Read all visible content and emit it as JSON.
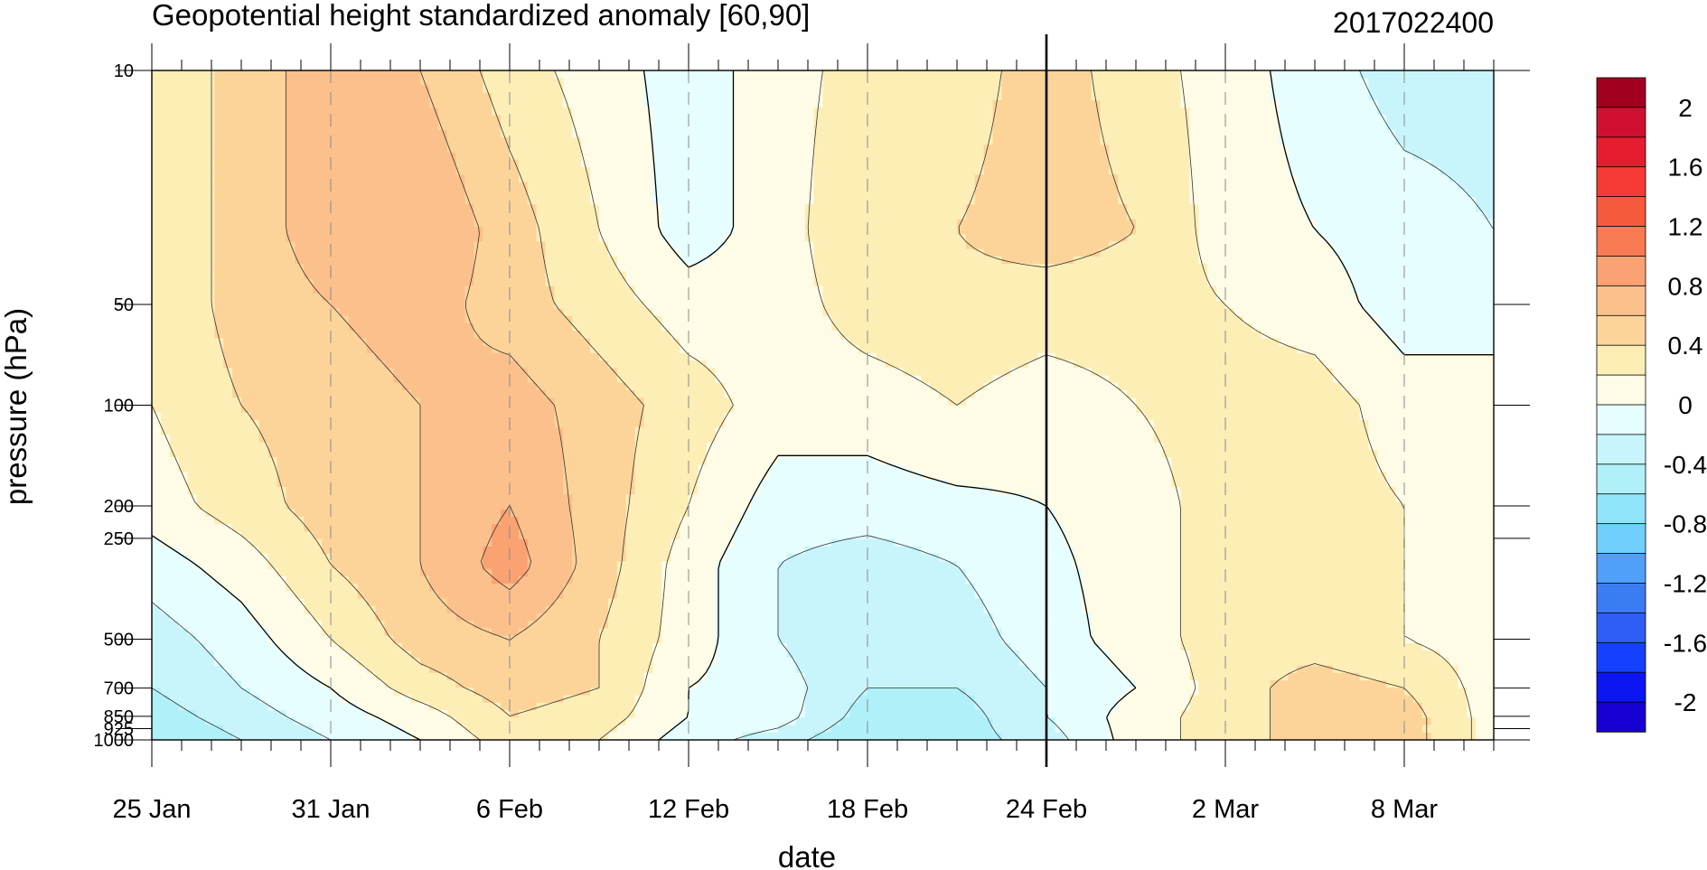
{
  "chart_data": {
    "type": "heatmap",
    "subtype": "filled-contour time-pressure cross-section",
    "title": "Geopotential height standardized anomaly [60,90]",
    "title_right": "2017022400",
    "xlabel": "date",
    "ylabel": "pressure (hPa)",
    "y_scale": "log",
    "y_inverted": true,
    "ylim": [
      1000,
      10
    ],
    "xlim_days": [
      0,
      45
    ],
    "x_ticks": [
      {
        "day": 0,
        "label": "25 Jan"
      },
      {
        "day": 6,
        "label": "31 Jan"
      },
      {
        "day": 12,
        "label": "6 Feb"
      },
      {
        "day": 18,
        "label": "12 Feb"
      },
      {
        "day": 24,
        "label": "18 Feb"
      },
      {
        "day": 30,
        "label": "24 Feb"
      },
      {
        "day": 36,
        "label": "2 Mar"
      },
      {
        "day": 42,
        "label": "8 Mar"
      }
    ],
    "y_ticks": [
      {
        "p": 10,
        "label": "10"
      },
      {
        "p": 50,
        "label": "50"
      },
      {
        "p": 100,
        "label": "100"
      },
      {
        "p": 200,
        "label": "200"
      },
      {
        "p": 250,
        "label": "250"
      },
      {
        "p": 500,
        "label": "500"
      },
      {
        "p": 700,
        "label": "700"
      },
      {
        "p": 850,
        "label": "850"
      },
      {
        "p": 925,
        "label": "925"
      },
      {
        "p": 1000,
        "label": "1000"
      }
    ],
    "vertical_marker_day": 30,
    "colorbar": {
      "levels": [
        -2.2,
        -2.0,
        -1.8,
        -1.6,
        -1.4,
        -1.2,
        -1.0,
        -0.8,
        -0.6,
        -0.4,
        -0.2,
        0.0,
        0.2,
        0.4,
        0.6,
        0.8,
        1.0,
        1.2,
        1.4,
        1.6,
        1.8,
        2.0,
        2.2
      ],
      "colors": [
        "#ffffff"
      ],
      "label_values": [
        -2,
        -1.6,
        -1.2,
        -0.8,
        -0.4,
        0,
        0.4,
        0.8,
        1.2,
        1.6,
        2
      ],
      "labels": [
        "-2",
        "-1.6",
        "-1.2",
        "-0.8",
        "-0.4",
        "0",
        "0.4",
        "0.8",
        "1.2",
        "1.6",
        "2"
      ]
    },
    "grid": {
      "days": [
        0,
        3,
        6,
        9,
        12,
        15,
        18,
        21,
        24,
        27,
        30,
        33,
        36,
        39,
        42,
        45
      ],
      "pressures": [
        10,
        30,
        50,
        100,
        200,
        300,
        500,
        700,
        850,
        1000
      ],
      "values": [
        [
          0.2,
          0.5,
          0.7,
          0.6,
          0.3,
          0.1,
          -0.1,
          0.1,
          0.3,
          0.3,
          0.5,
          0.3,
          0.1,
          -0.1,
          -0.3,
          -0.3
        ],
        [
          0.2,
          0.5,
          0.7,
          0.8,
          0.5,
          0.2,
          -0.1,
          0.1,
          0.4,
          0.4,
          0.5,
          0.4,
          0.1,
          0.0,
          -0.1,
          -0.2
        ],
        [
          0.2,
          0.5,
          0.6,
          0.7,
          0.5,
          0.3,
          0.1,
          0.1,
          0.3,
          0.35,
          0.3,
          0.3,
          0.2,
          0.1,
          -0.1,
          -0.1
        ],
        [
          0.2,
          0.4,
          0.5,
          0.6,
          0.7,
          0.5,
          0.3,
          0.1,
          0.1,
          0.2,
          0.1,
          0.2,
          0.3,
          0.3,
          0.1,
          0.1
        ],
        [
          0.1,
          0.3,
          0.5,
          0.6,
          0.8,
          0.5,
          0.2,
          -0.1,
          -0.1,
          -0.05,
          0.0,
          0.1,
          0.3,
          0.3,
          0.2,
          0.1
        ],
        [
          -0.1,
          0.1,
          0.4,
          0.6,
          0.9,
          0.5,
          0.1,
          -0.2,
          -0.3,
          -0.2,
          -0.05,
          0.1,
          0.3,
          0.3,
          0.2,
          0.1
        ],
        [
          -0.3,
          -0.1,
          0.2,
          0.5,
          0.6,
          0.4,
          0.1,
          -0.2,
          -0.4,
          -0.3,
          -0.1,
          0.1,
          0.3,
          0.3,
          0.2,
          0.1
        ],
        [
          -0.4,
          -0.2,
          0.0,
          0.3,
          0.5,
          0.4,
          0.0,
          -0.1,
          -0.4,
          -0.4,
          -0.2,
          0.0,
          0.3,
          0.5,
          0.4,
          0.1
        ],
        [
          -0.5,
          -0.3,
          -0.1,
          0.1,
          0.4,
          0.3,
          0.0,
          -0.1,
          -0.5,
          -0.5,
          -0.2,
          0.1,
          0.3,
          0.5,
          0.5,
          0.1
        ],
        [
          -0.6,
          -0.4,
          -0.2,
          0.0,
          0.3,
          0.2,
          -0.1,
          -0.3,
          -0.6,
          -0.5,
          -0.3,
          0.1,
          0.3,
          0.5,
          0.5,
          0.1
        ]
      ]
    }
  },
  "colors": {
    "palette_levels": [
      "#1600d4",
      "#0c16f2",
      "#1640ff",
      "#2e5ef5",
      "#3c7cf2",
      "#50a0fa",
      "#70d0fb",
      "#90e4f9",
      "#b0f0f9",
      "#c8f5fb",
      "#e6feff",
      "#fefce6",
      "#fdeeb6",
      "#fcd49a",
      "#fcc08c",
      "#faa272",
      "#f77a52",
      "#f55a3c",
      "#f63a36",
      "#e51c2e",
      "#d01030",
      "#a3001f"
    ]
  }
}
